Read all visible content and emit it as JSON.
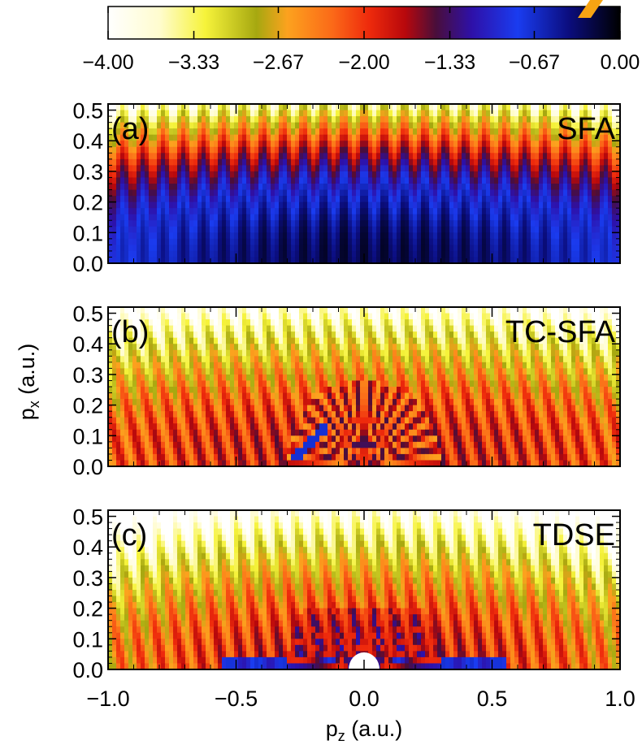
{
  "chart_data": {
    "type": "heatmap",
    "colorbar": {
      "ticks": [
        "-4.00",
        "-3.33",
        "-2.67",
        "-2.00",
        "-1.33",
        "-0.67",
        "0.00"
      ],
      "range": [
        -4.0,
        0.0
      ],
      "scale": "log10",
      "colormap": [
        {
          "v": -4.0,
          "c": "#ffffff"
        },
        {
          "v": -3.6,
          "c": "#fffccf"
        },
        {
          "v": -3.25,
          "c": "#f6f33a"
        },
        {
          "v": -2.85,
          "c": "#a6a810"
        },
        {
          "v": -2.6,
          "c": "#fca21e"
        },
        {
          "v": -2.25,
          "c": "#fb6818"
        },
        {
          "v": -1.95,
          "c": "#ee2a0c"
        },
        {
          "v": -1.7,
          "c": "#b8080c"
        },
        {
          "v": -1.45,
          "c": "#4a0e3a"
        },
        {
          "v": -1.15,
          "c": "#2e10a8"
        },
        {
          "v": -0.8,
          "c": "#1a3cf0"
        },
        {
          "v": -0.4,
          "c": "#0b0d7e"
        },
        {
          "v": 0.0,
          "c": "#000000"
        }
      ]
    },
    "xlabel": "p",
    "xlabel_sub": "z",
    "xlabel_unit": " (a.u.)",
    "ylabel": "p",
    "ylabel_sub": "x",
    "ylabel_unit": " (a.u.)",
    "xlim": [
      -1.0,
      1.0
    ],
    "ylim": [
      0.0,
      0.52
    ],
    "xticks": [
      "-1.0",
      "-0.5",
      "0.0",
      "0.5",
      "1.0"
    ],
    "yticks": [
      "0.0",
      "0.1",
      "0.2",
      "0.3",
      "0.4",
      "0.5"
    ],
    "panels": [
      {
        "label": "(a)",
        "method": "SFA"
      },
      {
        "label": "(b)",
        "method": "TC-SFA"
      },
      {
        "label": "(c)",
        "method": "TDSE"
      }
    ]
  }
}
